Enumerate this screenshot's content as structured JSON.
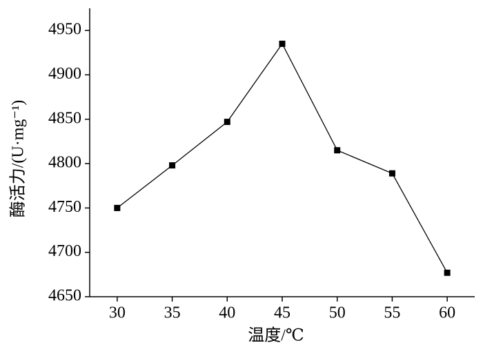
{
  "chart_data": {
    "type": "line",
    "x_label": "温度/℃",
    "y_label": "酶活力/(U·mg⁻¹)",
    "x": [
      30,
      35,
      40,
      45,
      50,
      55,
      60
    ],
    "series": [
      {
        "color": "#000000",
        "values": [
          4750,
          4798,
          4847,
          4935,
          4815,
          4789,
          4677
        ]
      }
    ],
    "xlim": [
      27.5,
      62.5
    ],
    "xticks": [
      30,
      35,
      40,
      45,
      50,
      55,
      60
    ],
    "ylim": [
      4650,
      4975
    ],
    "yticks": [
      4650,
      4700,
      4750,
      4800,
      4850,
      4900,
      4950
    ],
    "marker": "square"
  }
}
